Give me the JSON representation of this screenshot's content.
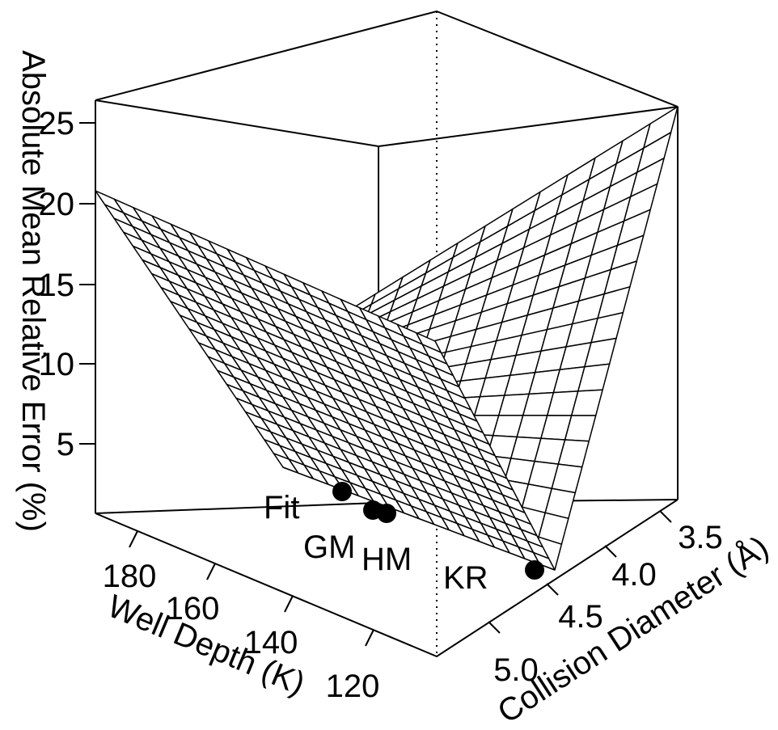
{
  "chart_data": {
    "type": "surface3d",
    "zlabel": "Absolute Mean Relative Error (%)",
    "xlabel": "Well Depth (K)",
    "ylabel": "Collision Diameter (Å)",
    "x_ticks": [
      "180",
      "160",
      "140",
      "120"
    ],
    "y_ticks": [
      "3.5",
      "4.0",
      "4.5",
      "5.0"
    ],
    "z_ticks": [
      "5",
      "10",
      "15",
      "20",
      "25"
    ],
    "points": [
      {
        "label": "Fit"
      },
      {
        "label": "GM"
      },
      {
        "label": "HM"
      },
      {
        "label": "KR"
      }
    ],
    "surface": "two intersecting planes forming a V-shaped valley along the minimum-error line"
  }
}
